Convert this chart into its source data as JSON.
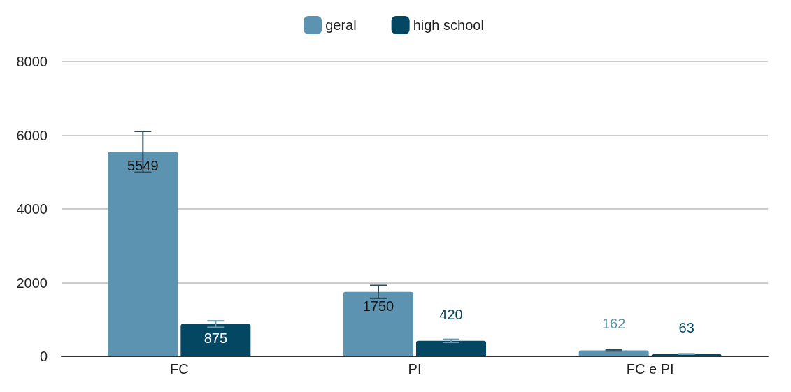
{
  "chart_data": {
    "type": "bar",
    "categories": [
      "FC",
      "PI",
      "FC e PI"
    ],
    "series": [
      {
        "name": "geral",
        "color": "#5b93b0",
        "values": [
          5549,
          1750,
          162
        ],
        "errors": [
          555,
          175,
          16
        ]
      },
      {
        "name": "high school",
        "color": "#034763",
        "values": [
          875,
          420,
          63
        ],
        "errors": [
          88,
          42,
          6
        ]
      }
    ],
    "ylim": [
      0,
      8000
    ],
    "yticks": [
      0,
      2000,
      4000,
      6000,
      8000
    ],
    "grid": "y",
    "legend": "top",
    "data_labels": true
  }
}
